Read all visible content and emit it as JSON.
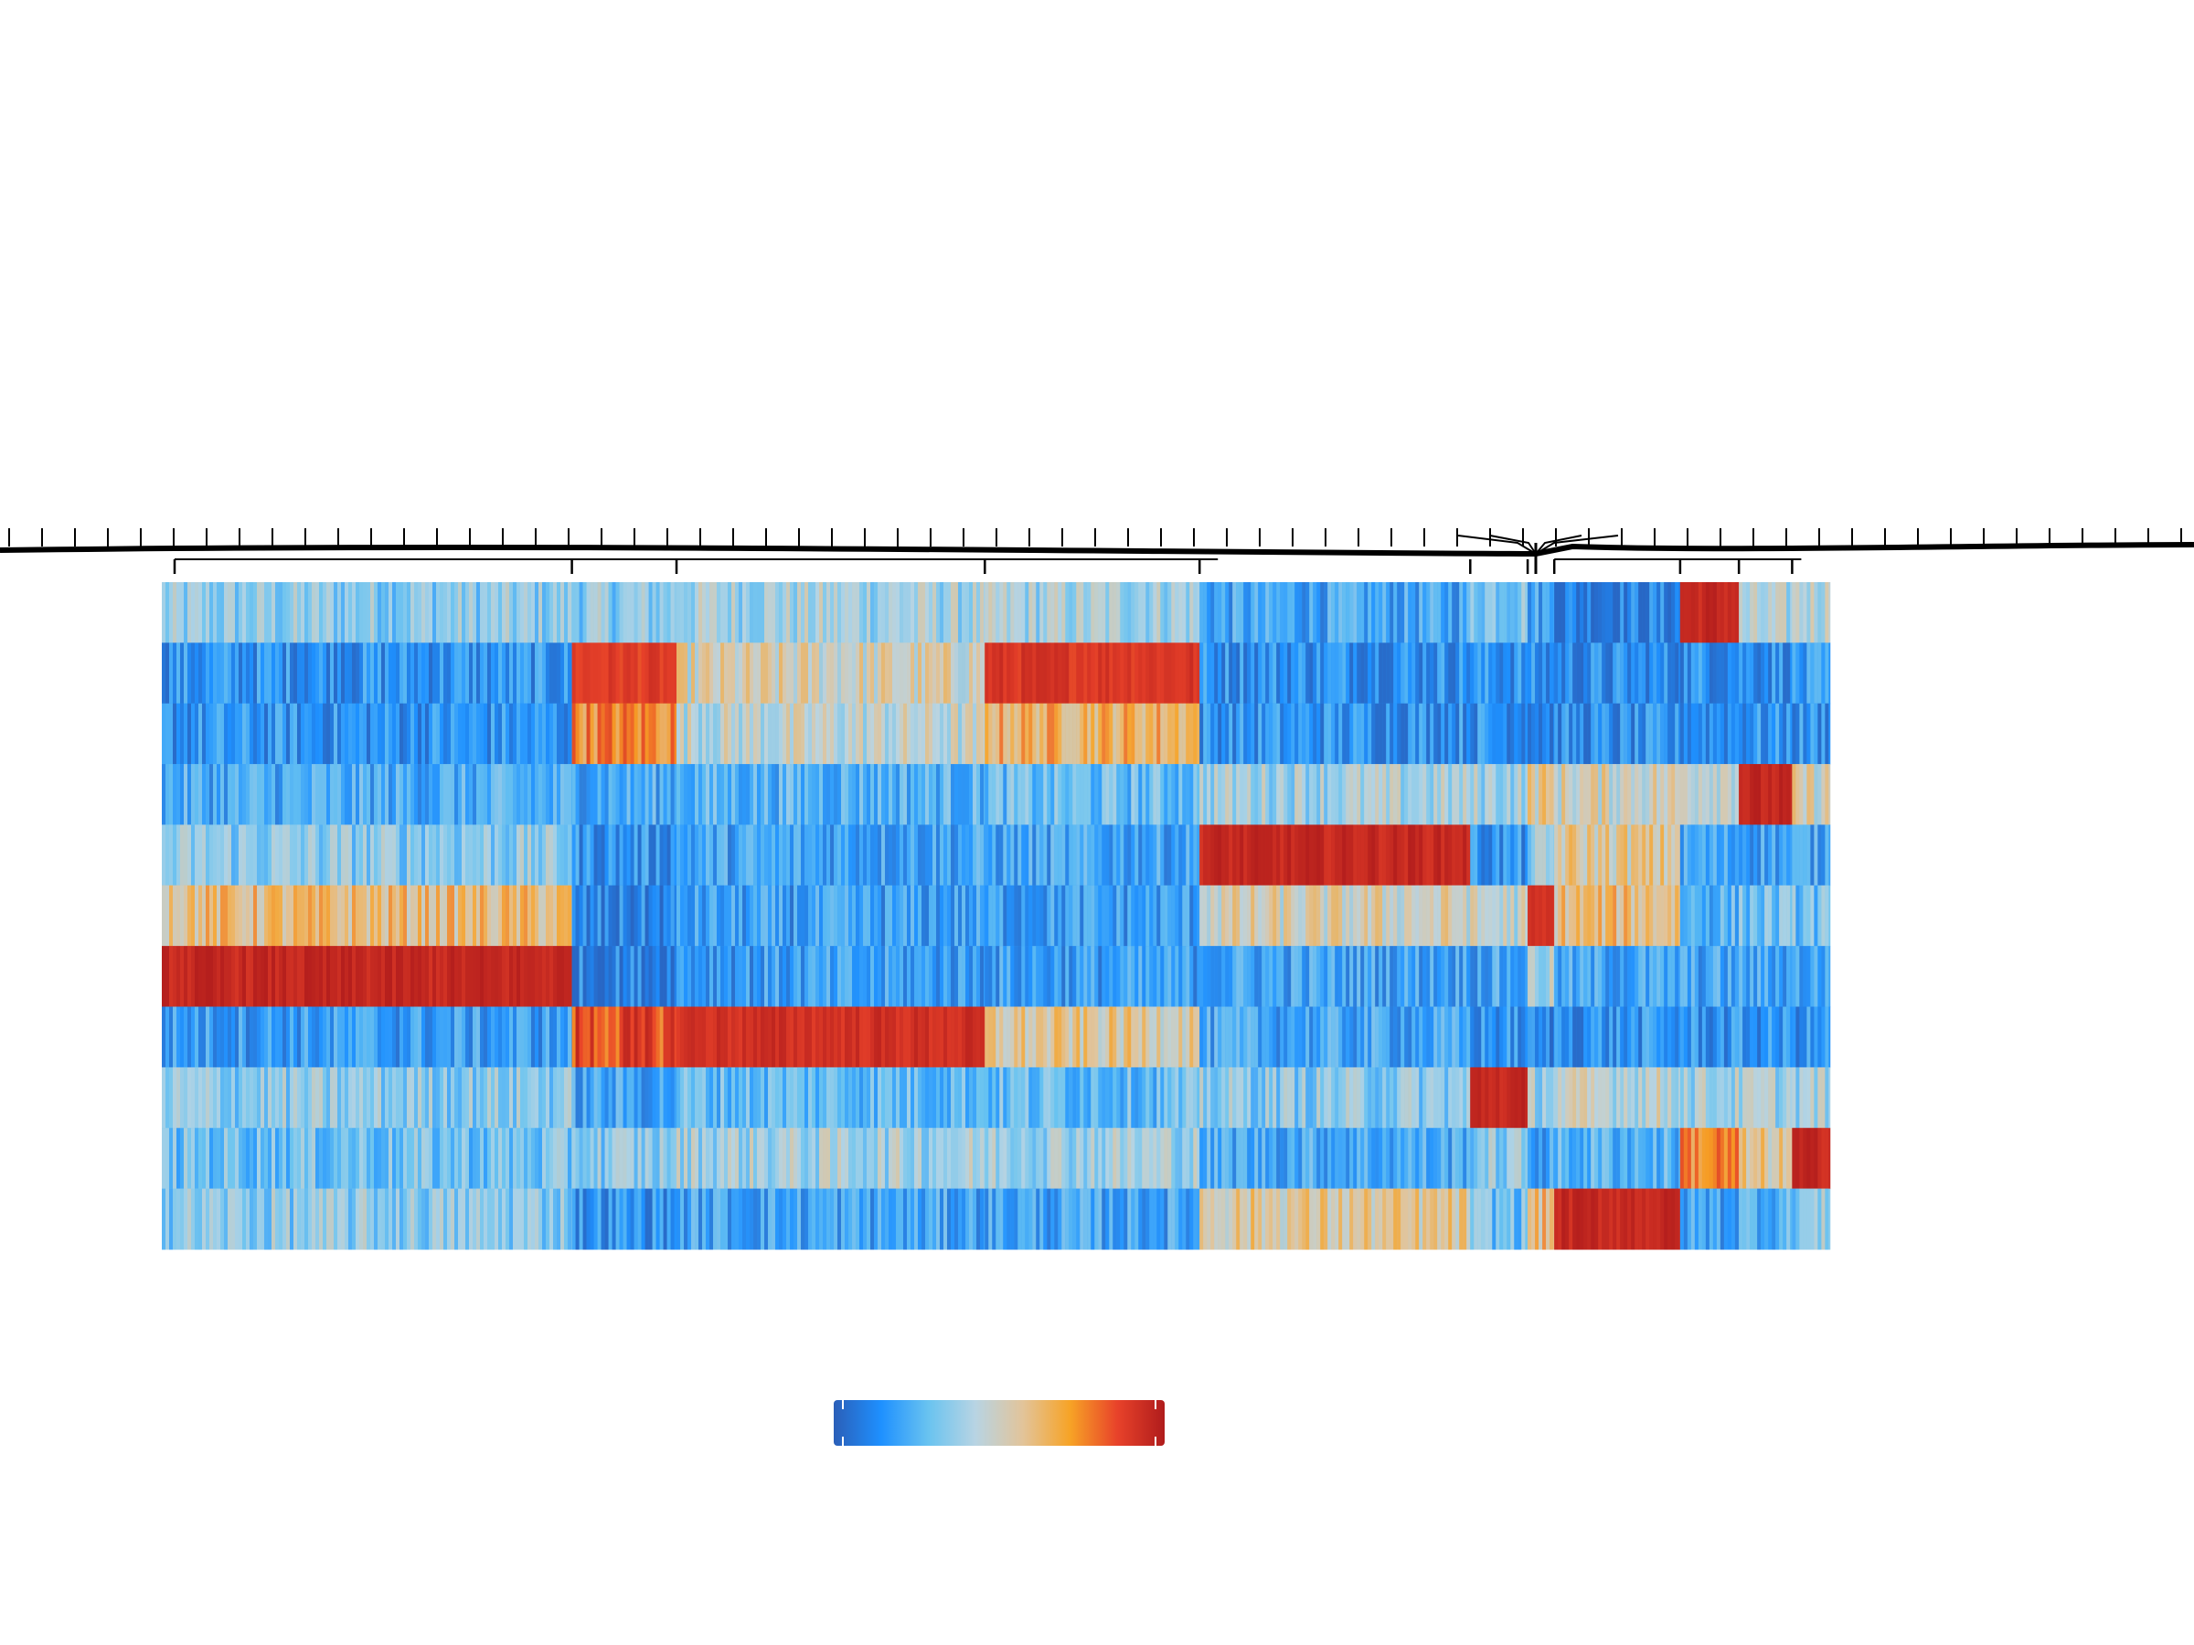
{
  "chart_data": {
    "type": "heatmap",
    "title": "",
    "xlabel": "",
    "ylabel": "",
    "n_rows": 11,
    "column_clusters": [
      {
        "id": "c1",
        "width_frac": 0.245
      },
      {
        "id": "c2",
        "width_frac": 0.0625
      },
      {
        "id": "c3",
        "width_frac": 0.1842
      },
      {
        "id": "c4",
        "width_frac": 0.1283
      },
      {
        "id": "c5",
        "width_frac": 0.1617
      },
      {
        "id": "c6",
        "width_frac": 0.0343
      },
      {
        "id": "c7",
        "width_frac": 0.0159
      },
      {
        "id": "c8",
        "width_frac": 0.0752
      },
      {
        "id": "c9",
        "width_frac": 0.0351
      },
      {
        "id": "c10",
        "width_frac": 0.0318
      },
      {
        "id": "c11",
        "width_frac": 0.0226
      }
    ],
    "rows": [
      {
        "row": 1,
        "cluster_levels": [
          0.35,
          0.35,
          0.4,
          0.4,
          0.2,
          0.35,
          0.2,
          0.1,
          0.95,
          0.4,
          0.45
        ]
      },
      {
        "row": 2,
        "cluster_levels": [
          0.15,
          0.88,
          0.5,
          0.9,
          0.15,
          0.15,
          0.12,
          0.12,
          0.15,
          0.15,
          0.15
        ]
      },
      {
        "row": 3,
        "cluster_levels": [
          0.15,
          0.75,
          0.45,
          0.65,
          0.15,
          0.15,
          0.12,
          0.12,
          0.15,
          0.15,
          0.15
        ]
      },
      {
        "row": 4,
        "cluster_levels": [
          0.22,
          0.22,
          0.25,
          0.28,
          0.4,
          0.4,
          0.55,
          0.5,
          0.5,
          0.95,
          0.5
        ]
      },
      {
        "row": 5,
        "cluster_levels": [
          0.35,
          0.15,
          0.2,
          0.2,
          0.95,
          0.15,
          0.35,
          0.55,
          0.2,
          0.2,
          0.2
        ]
      },
      {
        "row": 6,
        "cluster_levels": [
          0.6,
          0.1,
          0.18,
          0.18,
          0.5,
          0.45,
          0.9,
          0.6,
          0.25,
          0.3,
          0.3
        ]
      },
      {
        "row": 7,
        "cluster_levels": [
          0.95,
          0.1,
          0.18,
          0.18,
          0.2,
          0.2,
          0.4,
          0.2,
          0.2,
          0.2,
          0.2
        ]
      },
      {
        "row": 8,
        "cluster_levels": [
          0.18,
          0.85,
          0.92,
          0.55,
          0.2,
          0.15,
          0.1,
          0.15,
          0.15,
          0.15,
          0.15
        ]
      },
      {
        "row": 9,
        "cluster_levels": [
          0.35,
          0.2,
          0.28,
          0.28,
          0.35,
          0.95,
          0.4,
          0.45,
          0.4,
          0.4,
          0.4
        ]
      },
      {
        "row": 10,
        "cluster_levels": [
          0.3,
          0.35,
          0.4,
          0.4,
          0.22,
          0.35,
          0.2,
          0.25,
          0.75,
          0.55,
          0.95
        ]
      },
      {
        "row": 11,
        "cluster_levels": [
          0.35,
          0.15,
          0.2,
          0.2,
          0.55,
          0.3,
          0.6,
          0.95,
          0.2,
          0.25,
          0.35
        ]
      }
    ],
    "colorscale": [
      "#2b5fb8",
      "#1e90ff",
      "#69c3f0",
      "#b8d4e3",
      "#e2c49a",
      "#f7a326",
      "#e8422a",
      "#b01c1c"
    ],
    "colorbar": {
      "min": 0,
      "max": 1,
      "tick_labels": []
    },
    "legend": "bottom-center",
    "grid": false,
    "dendrogram": "top"
  }
}
